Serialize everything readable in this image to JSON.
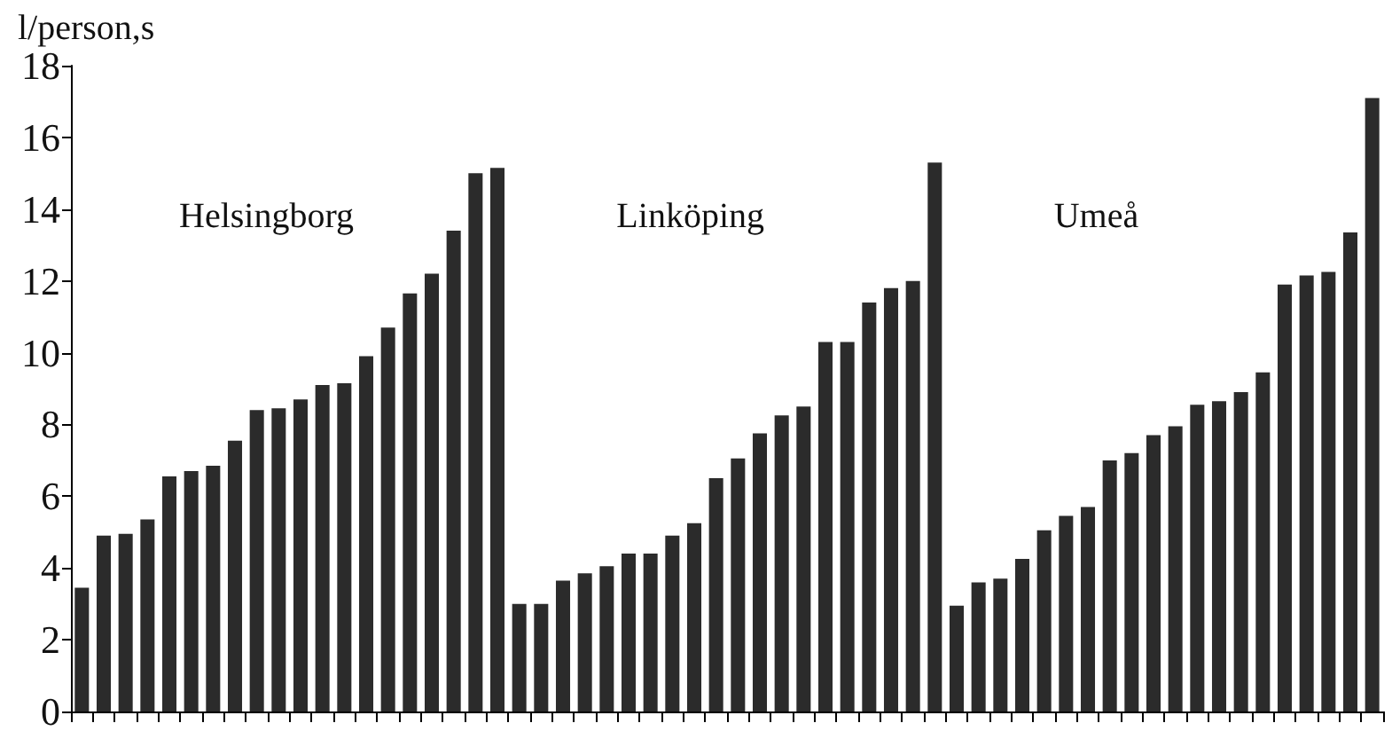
{
  "chart_data": {
    "type": "bar",
    "ylabel": "l/person,s",
    "annotations": [
      "Helsingborg",
      "Linköping",
      "Umeå"
    ],
    "categories": [
      null,
      null,
      null,
      null,
      null,
      null,
      null,
      null,
      null,
      null,
      null,
      null,
      null,
      null,
      null,
      null,
      null,
      null,
      null,
      null,
      null,
      null,
      null,
      null,
      null,
      null,
      null,
      null,
      null,
      null,
      null,
      null,
      null,
      null,
      null,
      null,
      null,
      null,
      null,
      null,
      null,
      null,
      null,
      null,
      null,
      null,
      null,
      null,
      null,
      null,
      null,
      null,
      null,
      null,
      null,
      null,
      null,
      null,
      null,
      null
    ],
    "values": [
      3.45,
      4.9,
      4.95,
      5.35,
      6.55,
      6.7,
      6.85,
      7.55,
      8.4,
      8.45,
      8.7,
      9.1,
      9.15,
      9.9,
      10.7,
      11.65,
      12.2,
      13.4,
      15.0,
      15.15,
      3.0,
      3.0,
      3.65,
      3.85,
      4.05,
      4.4,
      4.4,
      4.9,
      5.25,
      6.5,
      7.05,
      7.75,
      8.25,
      8.5,
      10.3,
      10.3,
      11.4,
      11.8,
      12.0,
      15.3,
      2.95,
      3.6,
      3.7,
      4.25,
      5.05,
      5.45,
      5.7,
      7.0,
      7.2,
      7.7,
      7.95,
      8.55,
      8.65,
      8.9,
      9.45,
      11.9,
      12.15,
      12.25,
      13.35,
      17.1
    ],
    "color": "#2b2b2b",
    "ylim": [
      0,
      18
    ],
    "yticks": [
      0,
      2,
      4,
      6,
      8,
      10,
      12,
      14,
      16,
      18
    ],
    "grid": false
  }
}
